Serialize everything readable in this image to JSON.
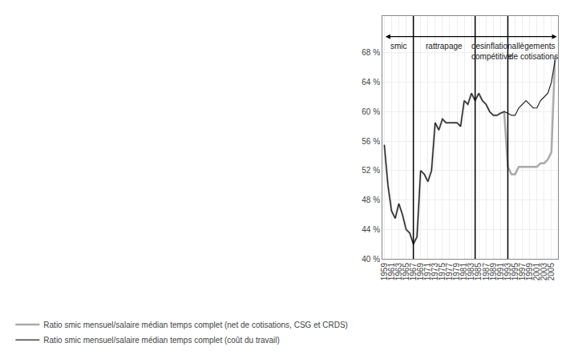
{
  "chart_data": {
    "type": "line",
    "x": [
      1959,
      1960,
      1961,
      1962,
      1963,
      1964,
      1965,
      1966,
      1967,
      1968,
      1969,
      1970,
      1971,
      1972,
      1973,
      1974,
      1975,
      1976,
      1977,
      1978,
      1979,
      1980,
      1981,
      1982,
      1983,
      1984,
      1985,
      1986,
      1987,
      1988,
      1989,
      1990,
      1991,
      1992,
      1993,
      1994,
      1995,
      1996,
      1997,
      1998,
      1999,
      2000,
      2001,
      2002,
      2003,
      2004,
      2005,
      2006
    ],
    "series": [
      {
        "name": "Ratio smic mensuel/salaire médian temps complet (net de cotisations, CSG et CRDS)",
        "color": "#aaaaaa",
        "values": [
          55.5,
          50.0,
          46.5,
          45.5,
          47.5,
          46.0,
          44.0,
          43.5,
          42.0,
          43.0,
          52.0,
          51.5,
          50.5,
          52.0,
          58.5,
          57.5,
          59.0,
          58.5,
          58.5,
          58.5,
          58.5,
          58.0,
          61.5,
          61.0,
          62.5,
          61.5,
          62.5,
          61.5,
          61.0,
          60.0,
          59.5,
          59.5,
          59.8,
          60.0,
          52.5,
          51.5,
          51.5,
          52.5,
          52.5,
          52.5,
          52.5,
          52.5,
          52.5,
          53.0,
          53.0,
          53.5,
          54.5,
          67.5
        ]
      },
      {
        "name": "Ratio smic mensuel/salaire médian temps complet (coût du travail)",
        "color": "#222222",
        "values": [
          55.5,
          50.0,
          46.5,
          45.5,
          47.5,
          46.0,
          44.0,
          43.5,
          42.0,
          43.0,
          52.0,
          51.5,
          50.5,
          52.0,
          58.5,
          57.5,
          59.0,
          58.5,
          58.5,
          58.5,
          58.5,
          58.0,
          61.5,
          61.0,
          62.5,
          61.5,
          62.5,
          61.5,
          61.0,
          60.0,
          59.5,
          59.5,
          59.8,
          60.0,
          59.8,
          59.5,
          59.5,
          60.5,
          61.0,
          61.5,
          61.0,
          60.5,
          60.5,
          61.5,
          62.0,
          62.5,
          64.0,
          67.0
        ]
      }
    ],
    "xlim": [
      1958.5,
      2006.8
    ],
    "xticks": [
      1959,
      1961,
      1963,
      1965,
      1967,
      1969,
      1971,
      1973,
      1975,
      1977,
      1979,
      1981,
      1983,
      1985,
      1987,
      1989,
      1991,
      1993,
      1995,
      1997,
      1999,
      2001,
      2003,
      2005
    ],
    "ylim": [
      40,
      73
    ],
    "yticks": [
      {
        "value": 40,
        "label": "40 %"
      },
      {
        "value": 44,
        "label": "44 %"
      },
      {
        "value": 48,
        "label": "48 %"
      },
      {
        "value": 52,
        "label": "52 %"
      },
      {
        "value": 56,
        "label": "56 %"
      },
      {
        "value": 60,
        "label": "60 %"
      },
      {
        "value": 64,
        "label": "64 %"
      },
      {
        "value": 68,
        "label": "68 %"
      }
    ],
    "vlines": [
      1967,
      1984,
      1993
    ],
    "arrow": {
      "x": [
        1959.0,
        2006.5
      ],
      "y": 70.2
    },
    "annotations": [
      {
        "x": 1963.0,
        "text": "smic"
      },
      {
        "x": 1975.5,
        "text": "rattrapage"
      },
      {
        "x": 1988.5,
        "text": "desinflation\ncompétitive"
      },
      {
        "x": 2000.0,
        "text": "allègements\nde cotisations"
      }
    ],
    "grid": true,
    "legend": "bottom left"
  }
}
